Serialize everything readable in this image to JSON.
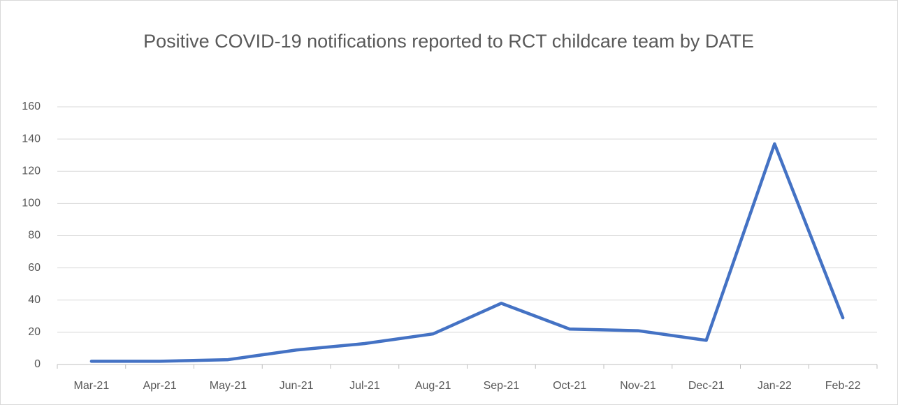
{
  "chart_data": {
    "type": "line",
    "title": "Positive COVID-19 notifications reported to RCT childcare team by DATE",
    "categories": [
      "Mar-21",
      "Apr-21",
      "May-21",
      "Jun-21",
      "Jul-21",
      "Aug-21",
      "Sep-21",
      "Oct-21",
      "Nov-21",
      "Dec-21",
      "Jan-22",
      "Feb-22"
    ],
    "values": [
      2,
      2,
      3,
      9,
      13,
      19,
      38,
      22,
      21,
      15,
      137,
      29
    ],
    "color": "#4472c4",
    "ylim": [
      0,
      160
    ],
    "yticks": [
      0,
      20,
      40,
      60,
      80,
      100,
      120,
      140,
      160
    ],
    "grid": true
  }
}
